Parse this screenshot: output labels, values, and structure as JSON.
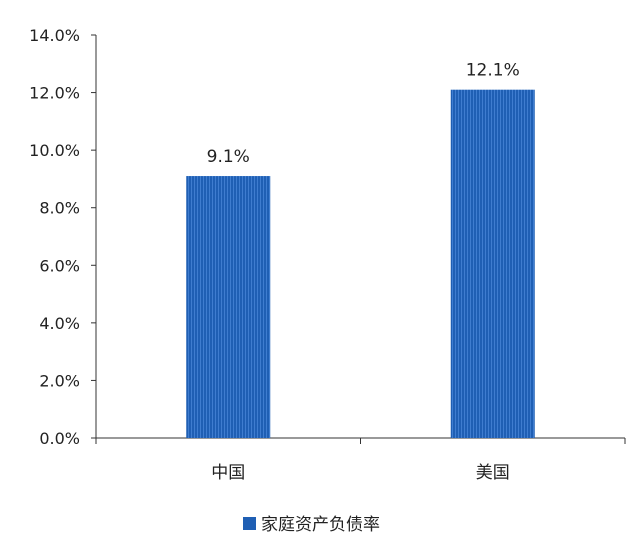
{
  "chart_data": {
    "type": "bar",
    "categories": [
      "中国",
      "美国"
    ],
    "series": [
      {
        "name": "家庭资产负债率",
        "values": [
          9.1,
          12.1
        ],
        "data_labels": [
          "9.1%",
          "12.1%"
        ],
        "color": "#1f5fb4"
      }
    ],
    "ylim": [
      0,
      14
    ],
    "yticks": [
      0,
      2,
      4,
      6,
      8,
      10,
      12,
      14
    ],
    "ytick_labels": [
      "0.0%",
      "2.0%",
      "4.0%",
      "6.0%",
      "8.0%",
      "10.0%",
      "12.0%",
      "14.0%"
    ],
    "grid": false,
    "legend_position": "bottom-center",
    "title": "",
    "xlabel": "",
    "ylabel": ""
  },
  "colors": {
    "bar": "#1f5fb4",
    "bar_stripe": "#3f7dd0",
    "axis": "#333333",
    "text": "#222222"
  }
}
